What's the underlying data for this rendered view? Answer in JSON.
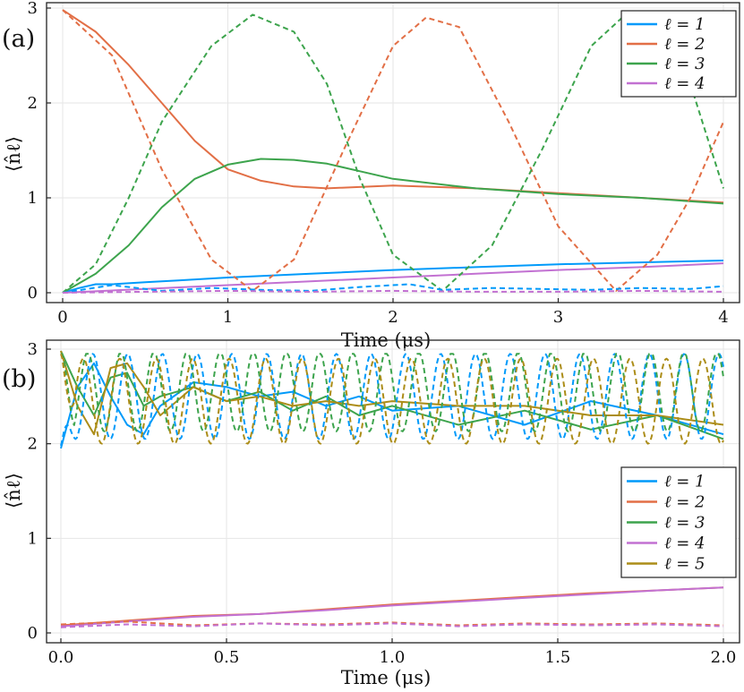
{
  "chart_data": [
    {
      "type": "line",
      "panel_label": "(a)",
      "xlabel": "Time (μs)",
      "ylabel": "⟨n̂ℓ⟩",
      "xlim": [
        0,
        4
      ],
      "ylim": [
        0,
        3
      ],
      "xticks": [
        "0",
        "1",
        "2",
        "3",
        "4"
      ],
      "yticks": [
        "0",
        "1",
        "2",
        "3"
      ],
      "grid": true,
      "legend_position": "top-right",
      "colors": {
        "l1": "#009AFA",
        "l2": "#E26F46",
        "l3": "#3DA44D",
        "l4": "#C271D2"
      },
      "series": [
        {
          "name": "ℓ = 1",
          "key": "l1",
          "style": "solid",
          "x": [
            0,
            0.1,
            0.2,
            0.3,
            0.5,
            0.7,
            1.0,
            1.5,
            2.0,
            2.5,
            3.0,
            3.5,
            4.0
          ],
          "y": [
            0,
            0.05,
            0.09,
            0.09,
            0.11,
            0.13,
            0.16,
            0.2,
            0.24,
            0.27,
            0.3,
            0.32,
            0.34
          ]
        },
        {
          "name": "ℓ = 2",
          "key": "l2",
          "style": "solid",
          "x": [
            0,
            0.2,
            0.4,
            0.6,
            0.8,
            1.0,
            1.2,
            1.4,
            1.6,
            2.0,
            2.5,
            3.0,
            3.5,
            4.0
          ],
          "y": [
            2.98,
            2.75,
            2.4,
            2.0,
            1.6,
            1.3,
            1.18,
            1.12,
            1.1,
            1.13,
            1.1,
            1.05,
            1.0,
            0.95
          ]
        },
        {
          "name": "ℓ = 3",
          "key": "l3",
          "style": "solid",
          "x": [
            0,
            0.2,
            0.4,
            0.6,
            0.8,
            1.0,
            1.2,
            1.4,
            1.6,
            1.8,
            2.0,
            2.5,
            3.0,
            3.5,
            4.0
          ],
          "y": [
            0,
            0.2,
            0.5,
            0.9,
            1.2,
            1.35,
            1.41,
            1.4,
            1.36,
            1.28,
            1.2,
            1.1,
            1.04,
            1.0,
            0.94
          ]
        },
        {
          "name": "ℓ = 4",
          "key": "l4",
          "style": "solid",
          "x": [
            0,
            0.5,
            1.0,
            1.5,
            2.0,
            2.5,
            3.0,
            3.5,
            4.0
          ],
          "y": [
            0,
            0.04,
            0.08,
            0.12,
            0.16,
            0.2,
            0.24,
            0.27,
            0.31
          ]
        },
        {
          "key": "l2",
          "style": "dashed",
          "x": [
            0,
            0.3,
            0.6,
            0.9,
            1.15,
            1.4,
            1.7,
            2.0,
            2.2,
            2.4,
            2.7,
            3.0,
            3.35,
            3.6,
            3.8,
            4.0
          ],
          "y": [
            2.98,
            2.5,
            1.3,
            0.35,
            0.02,
            0.35,
            1.5,
            2.6,
            2.9,
            2.8,
            1.8,
            0.7,
            0.02,
            0.4,
            1.0,
            1.8
          ]
        },
        {
          "key": "l3",
          "style": "dashed",
          "x": [
            0,
            0.2,
            0.4,
            0.6,
            0.9,
            1.15,
            1.4,
            1.6,
            1.8,
            2.0,
            2.3,
            2.6,
            2.9,
            3.2,
            3.4,
            3.6,
            3.8,
            4.0
          ],
          "y": [
            0,
            0.3,
            1.0,
            1.8,
            2.6,
            2.93,
            2.75,
            2.2,
            1.2,
            0.4,
            0.02,
            0.5,
            1.5,
            2.6,
            2.92,
            2.9,
            2.2,
            1.1
          ]
        },
        {
          "key": "l1",
          "style": "dashed",
          "x": [
            0,
            0.3,
            0.6,
            0.9,
            1.2,
            1.5,
            1.8,
            2.1,
            2.3,
            2.6,
            2.9,
            3.2,
            3.5,
            3.8,
            4.0
          ],
          "y": [
            0,
            0.08,
            0.02,
            0.05,
            0.03,
            0.02,
            0.06,
            0.09,
            0.03,
            0.05,
            0.04,
            0.03,
            0.05,
            0.04,
            0.07
          ]
        },
        {
          "key": "l4",
          "style": "dashed",
          "x": [
            0,
            0.5,
            1.0,
            1.5,
            2.0,
            2.5,
            3.0,
            3.5,
            4.0
          ],
          "y": [
            0,
            0.01,
            0.02,
            0.01,
            0.02,
            0.01,
            0.01,
            0.02,
            0.01
          ]
        }
      ]
    },
    {
      "type": "line",
      "panel_label": "(b)",
      "xlabel": "Time (μs)",
      "ylabel": "⟨n̂ℓ⟩",
      "xlim": [
        0,
        2
      ],
      "ylim": [
        0,
        3
      ],
      "xticks": [
        "0.0",
        "0.5",
        "1.0",
        "1.5",
        "2.0"
      ],
      "yticks": [
        "0",
        "1",
        "2",
        "3"
      ],
      "grid": true,
      "legend_position": "middle-right",
      "colors": {
        "l1": "#009AFA",
        "l2": "#E26F46",
        "l3": "#3DA44D",
        "l4": "#C271D2",
        "l5": "#AC8D18"
      },
      "series": [
        {
          "name": "ℓ = 1",
          "key": "l1",
          "style": "solid",
          "x": [
            0,
            0.05,
            0.1,
            0.15,
            0.2,
            0.25,
            0.3,
            0.4,
            0.5,
            0.6,
            0.7,
            0.8,
            0.9,
            1.0,
            1.2,
            1.4,
            1.6,
            1.8,
            2.0
          ],
          "y": [
            1.95,
            2.6,
            2.85,
            2.5,
            2.2,
            2.1,
            2.4,
            2.65,
            2.6,
            2.5,
            2.55,
            2.4,
            2.5,
            2.35,
            2.4,
            2.2,
            2.45,
            2.3,
            2.1
          ]
        },
        {
          "name": "ℓ = 2",
          "key": "l2",
          "style": "solid",
          "x": [
            0,
            0.2,
            0.4,
            0.6,
            0.8,
            1.0,
            1.2,
            1.4,
            1.6,
            1.8,
            2.0
          ],
          "y": [
            0.08,
            0.13,
            0.18,
            0.2,
            0.25,
            0.3,
            0.34,
            0.38,
            0.42,
            0.45,
            0.48
          ]
        },
        {
          "name": "ℓ = 3",
          "key": "l3",
          "style": "solid",
          "x": [
            0,
            0.05,
            0.1,
            0.15,
            0.2,
            0.25,
            0.3,
            0.4,
            0.5,
            0.6,
            0.7,
            0.8,
            0.9,
            1.0,
            1.2,
            1.4,
            1.6,
            1.8,
            2.0
          ],
          "y": [
            2.98,
            2.6,
            2.3,
            2.7,
            2.75,
            2.4,
            2.5,
            2.6,
            2.45,
            2.55,
            2.35,
            2.5,
            2.3,
            2.4,
            2.2,
            2.35,
            2.15,
            2.3,
            2.05
          ]
        },
        {
          "name": "ℓ = 4",
          "key": "l4",
          "style": "solid",
          "x": [
            0,
            0.2,
            0.4,
            0.6,
            0.8,
            1.0,
            1.2,
            1.4,
            1.6,
            1.8,
            2.0
          ],
          "y": [
            0.07,
            0.12,
            0.17,
            0.2,
            0.24,
            0.29,
            0.33,
            0.37,
            0.41,
            0.45,
            0.48
          ]
        },
        {
          "name": "ℓ = 5",
          "key": "l5",
          "style": "solid",
          "x": [
            0,
            0.05,
            0.1,
            0.15,
            0.2,
            0.25,
            0.3,
            0.4,
            0.5,
            0.6,
            0.7,
            0.8,
            0.9,
            1.0,
            1.2,
            1.4,
            1.6,
            1.8,
            2.0
          ],
          "y": [
            2.98,
            2.4,
            2.1,
            2.8,
            2.85,
            2.6,
            2.3,
            2.6,
            2.45,
            2.5,
            2.4,
            2.45,
            2.4,
            2.45,
            2.4,
            2.4,
            2.3,
            2.3,
            2.2
          ]
        },
        {
          "key": "l1",
          "style": "dashed",
          "osc": true,
          "amp": 0.45,
          "center": 2.5,
          "period": 0.105,
          "phase": 0.5,
          "x": [
            0,
            2
          ],
          "y": [
            1.95,
            2.6
          ]
        },
        {
          "key": "l3",
          "style": "dashed",
          "osc": true,
          "amp": 0.42,
          "center": 2.55,
          "period": 0.1,
          "phase": 1.2,
          "x": [
            0,
            2
          ],
          "y": [
            3.0,
            2.55
          ]
        },
        {
          "key": "l5",
          "style": "dashed",
          "osc": true,
          "amp": 0.45,
          "center": 2.45,
          "period": 0.11,
          "phase": 2.4,
          "x": [
            0,
            2
          ],
          "y": [
            3.0,
            2.45
          ]
        },
        {
          "key": "l2",
          "style": "dashed",
          "x": [
            0,
            0.2,
            0.4,
            0.6,
            0.8,
            1.0,
            1.2,
            1.4,
            1.6,
            1.8,
            2.0
          ],
          "y": [
            0.09,
            0.12,
            0.08,
            0.1,
            0.09,
            0.11,
            0.08,
            0.1,
            0.09,
            0.1,
            0.08
          ]
        },
        {
          "key": "l4",
          "style": "dashed",
          "x": [
            0,
            0.2,
            0.4,
            0.6,
            0.8,
            1.0,
            1.2,
            1.4,
            1.6,
            1.8,
            2.0
          ],
          "y": [
            0.06,
            0.09,
            0.07,
            0.1,
            0.08,
            0.1,
            0.07,
            0.09,
            0.08,
            0.09,
            0.07
          ]
        }
      ]
    }
  ]
}
